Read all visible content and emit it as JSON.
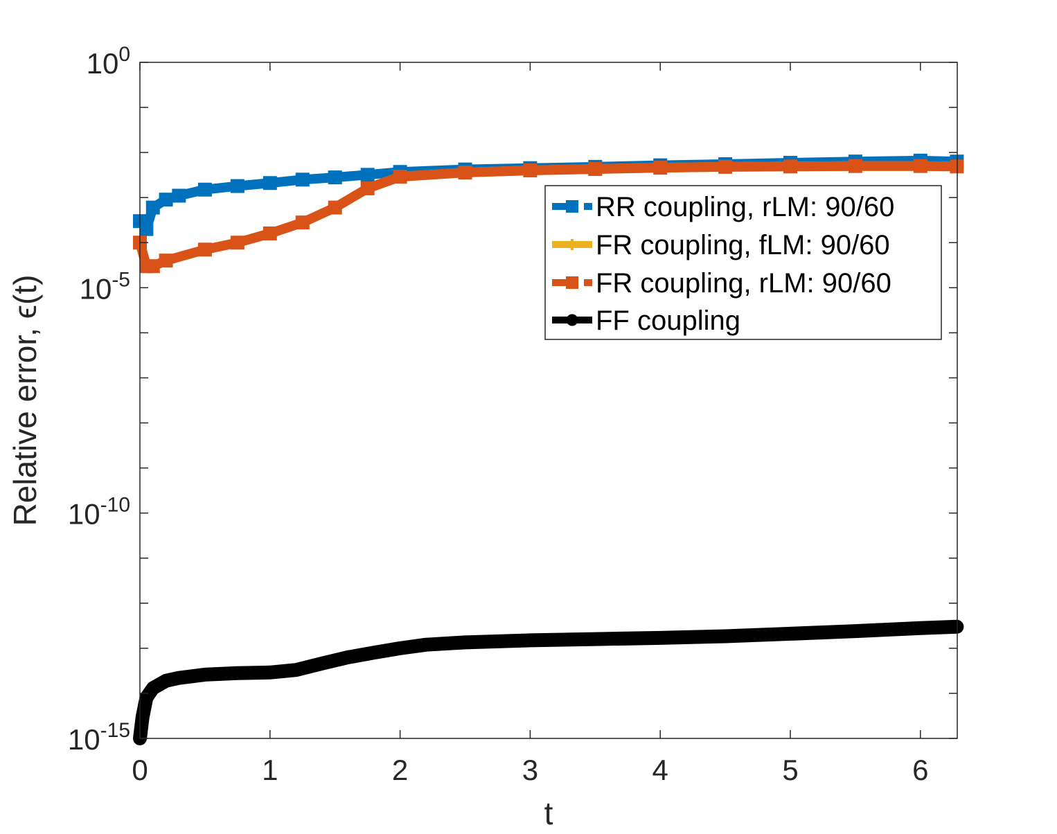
{
  "chart_data": {
    "type": "line",
    "xlabel": "t",
    "ylabel": "Relative error, ϵ(t)",
    "xlim": [
      0,
      6.2832
    ],
    "ylim": [
      1e-15,
      1
    ],
    "yscale": "log",
    "xticks": [
      0,
      1,
      2,
      3,
      4,
      5,
      6
    ],
    "xtick_labels": [
      "0",
      "1",
      "2",
      "3",
      "4",
      "5",
      "6"
    ],
    "yticks": [
      {
        "value": 1,
        "base": "10",
        "exp": "0"
      },
      {
        "value": 1e-05,
        "base": "10",
        "exp": "-5"
      },
      {
        "value": 1e-10,
        "base": "10",
        "exp": "-10"
      },
      {
        "value": 1e-15,
        "base": "10",
        "exp": "-15"
      }
    ],
    "grid": false,
    "legend_position": "upper-right",
    "series": [
      {
        "name": "RR coupling, rLM: 90/60",
        "color": "#0072BD",
        "marker": "square",
        "x": [
          0,
          0.05,
          0.1,
          0.2,
          0.3,
          0.5,
          0.75,
          1.0,
          1.25,
          1.5,
          1.75,
          2.0,
          2.5,
          3.0,
          3.5,
          4.0,
          4.5,
          5.0,
          5.5,
          6.0,
          6.28
        ],
        "y": [
          0.0003,
          0.0002,
          0.0006,
          0.0009,
          0.0011,
          0.0015,
          0.0018,
          0.0021,
          0.0025,
          0.0028,
          0.0032,
          0.0037,
          0.0042,
          0.0045,
          0.0048,
          0.0052,
          0.0055,
          0.0059,
          0.0063,
          0.0066,
          0.0063
        ]
      },
      {
        "name": "FR coupling, fLM: 90/60",
        "color": "#EDB120",
        "marker": "plus",
        "x": [
          0,
          0.05,
          0.1,
          0.2,
          0.5,
          0.75,
          1.0,
          1.25,
          1.5,
          1.75,
          2.0,
          2.5,
          3.0,
          3.5,
          4.0,
          4.5,
          5.0,
          5.5,
          6.0,
          6.28
        ],
        "y": [
          0.0001,
          3e-05,
          3e-05,
          4e-05,
          7e-05,
          0.0001,
          0.00016,
          0.00028,
          0.0006,
          0.0016,
          0.0029,
          0.0036,
          0.004,
          0.0043,
          0.0046,
          0.0048,
          0.0049,
          0.005,
          0.005,
          0.0049
        ]
      },
      {
        "name": "FR coupling, rLM: 90/60",
        "color": "#D95319",
        "marker": "square",
        "x": [
          0,
          0.05,
          0.1,
          0.2,
          0.5,
          0.75,
          1.0,
          1.25,
          1.5,
          1.75,
          2.0,
          2.5,
          3.0,
          3.5,
          4.0,
          4.5,
          5.0,
          5.5,
          6.0,
          6.28
        ],
        "y": [
          0.0001,
          3e-05,
          3e-05,
          4e-05,
          7e-05,
          0.0001,
          0.00016,
          0.00028,
          0.0006,
          0.0016,
          0.0029,
          0.0036,
          0.004,
          0.0043,
          0.0046,
          0.0048,
          0.0049,
          0.005,
          0.005,
          0.0049
        ]
      },
      {
        "name": "FF coupling",
        "color": "#000000",
        "marker": "circle",
        "x": [
          0,
          0.02,
          0.05,
          0.1,
          0.2,
          0.3,
          0.5,
          0.75,
          1.0,
          1.2,
          1.4,
          1.6,
          1.8,
          2.0,
          2.2,
          2.5,
          3.0,
          3.5,
          4.0,
          4.5,
          5.0,
          5.5,
          6.0,
          6.28
        ],
        "y": [
          1e-15,
          3e-15,
          8e-15,
          1.3e-14,
          1.9e-14,
          2.2e-14,
          2.6e-14,
          2.8e-14,
          2.9e-14,
          3.3e-14,
          4.6e-14,
          6.3e-14,
          8e-14,
          1e-13,
          1.2e-13,
          1.35e-13,
          1.5e-13,
          1.6e-13,
          1.7e-13,
          1.85e-13,
          2.1e-13,
          2.4e-13,
          2.8e-13,
          3e-13
        ]
      }
    ]
  }
}
